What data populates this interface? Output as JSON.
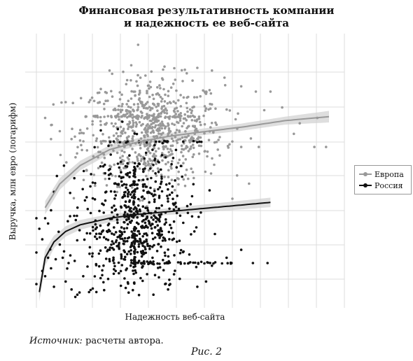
{
  "chart_data": {
    "type": "scatter",
    "title_line1": "Финансовая результативность компании",
    "title_line2": "и надежность ее веб-сайта",
    "xlabel": "Надежность веб-сайта",
    "ylabel": "Выручка, млн евро (логарифм)",
    "xlim": [
      0,
      100
    ],
    "ylim": [
      0,
      100
    ],
    "grid": true,
    "legend_position": "right",
    "series": [
      {
        "name": "Европа",
        "color": "#999999",
        "trend": [
          [
            3,
            34
          ],
          [
            8,
            43
          ],
          [
            15,
            50
          ],
          [
            25,
            56
          ],
          [
            35,
            59
          ],
          [
            45,
            61
          ],
          [
            55,
            62.5
          ],
          [
            70,
            64.5
          ],
          [
            85,
            67
          ],
          [
            100,
            68.5
          ]
        ],
        "band": [
          [
            3,
            2.5
          ],
          [
            15,
            1.8
          ],
          [
            50,
            1.2
          ],
          [
            85,
            1.5
          ],
          [
            100,
            2.2
          ]
        ],
        "cluster_count": 720,
        "line_groups": [
          {
            "y": 68.5,
            "x": [
              13,
              55
            ],
            "n": 55
          },
          {
            "y": 59,
            "x": [
              22,
              55
            ],
            "n": 28
          }
        ],
        "points": [
          [
            10,
            74
          ],
          [
            18,
            74
          ],
          [
            22,
            79
          ],
          [
            38,
            74
          ],
          [
            43,
            83
          ],
          [
            50,
            82
          ],
          [
            55,
            87
          ],
          [
            60,
            86
          ],
          [
            70,
            80
          ],
          [
            75,
            78
          ],
          [
            80,
            78
          ],
          [
            90,
            66
          ],
          [
            96,
            68
          ],
          [
            99,
            57
          ],
          [
            95,
            57
          ],
          [
            88,
            62
          ],
          [
            62,
            56
          ],
          [
            70,
            57
          ],
          [
            3,
            68
          ],
          [
            5,
            60
          ],
          [
            8,
            63
          ],
          [
            12,
            60
          ],
          [
            25,
            86
          ],
          [
            66,
            58
          ],
          [
            76,
            57
          ],
          [
            84,
            72
          ]
        ]
      },
      {
        "name": "Россия",
        "color": "#111111",
        "trend": [
          [
            1,
            2
          ],
          [
            3,
            15
          ],
          [
            6,
            21
          ],
          [
            10,
            25
          ],
          [
            15,
            27.5
          ],
          [
            25,
            30
          ],
          [
            35,
            31.5
          ],
          [
            50,
            33
          ],
          [
            60,
            34
          ],
          [
            70,
            35
          ],
          [
            80,
            36
          ]
        ],
        "band": [
          [
            1,
            3.5
          ],
          [
            8,
            2
          ],
          [
            40,
            1.2
          ],
          [
            80,
            1.8
          ]
        ],
        "cluster_count": 620,
        "vertical_line": {
          "x": 33.5,
          "y": [
            5,
            52
          ],
          "n": 65
        },
        "line_groups": [
          {
            "y": 13,
            "x": [
              33,
              67
            ],
            "n": 45
          },
          {
            "y": 59,
            "x": [
              25,
              58
            ],
            "n": 20
          }
        ],
        "points": [
          [
            0,
            30
          ],
          [
            0,
            17
          ],
          [
            0,
            5
          ],
          [
            1,
            26
          ],
          [
            2,
            10
          ],
          [
            3,
            8
          ],
          [
            4,
            15
          ],
          [
            5,
            11
          ],
          [
            6,
            4
          ],
          [
            8,
            20
          ],
          [
            6,
            40
          ],
          [
            7,
            46
          ],
          [
            10,
            6
          ],
          [
            12,
            3
          ],
          [
            14,
            1
          ],
          [
            16,
            8
          ],
          [
            18,
            2
          ],
          [
            5,
            33
          ],
          [
            2,
            22
          ],
          [
            3,
            30
          ],
          [
            4,
            28
          ],
          [
            45,
            3
          ],
          [
            40,
            1
          ],
          [
            44,
            5
          ],
          [
            49,
            7
          ],
          [
            55,
            4
          ],
          [
            58,
            6
          ],
          [
            60,
            12
          ],
          [
            65,
            15
          ],
          [
            70,
            18
          ],
          [
            74,
            13
          ],
          [
            61,
            24
          ],
          [
            54,
            25
          ],
          [
            79,
            13
          ],
          [
            9,
            15
          ],
          [
            11,
            13
          ]
        ]
      }
    ]
  },
  "source_label": "Источник:",
  "source_text": " расчеты автора.",
  "caption": "Рис. 2"
}
